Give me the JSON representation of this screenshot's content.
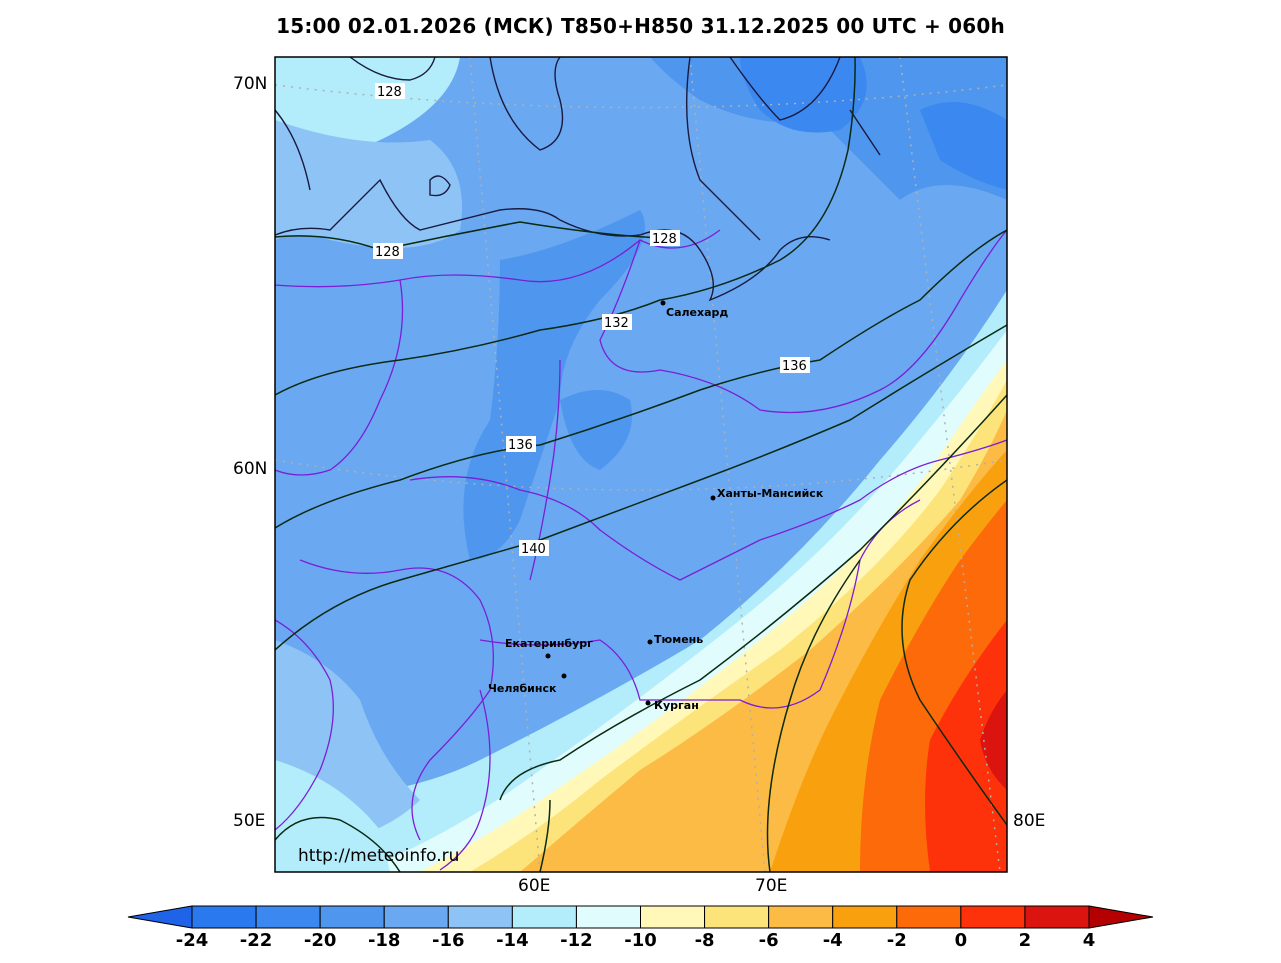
{
  "title": "15:00 02.01.2026 (МСК) T850+H850 31.12.2025 00 UTC + 060h",
  "map": {
    "lat_labels": [
      "70N",
      "60N",
      "50E"
    ],
    "lon_labels": [
      "60E",
      "70E",
      "80E"
    ],
    "url": "http://meteoinfo.ru",
    "cities": [
      {
        "name": "Салехард"
      },
      {
        "name": "Ханты-Мансийск"
      },
      {
        "name": "Екатеринбург"
      },
      {
        "name": "Тюмень"
      },
      {
        "name": "Челябинск"
      },
      {
        "name": "Курган"
      }
    ],
    "isohypse_labels": [
      "128",
      "128",
      "128",
      "132",
      "136",
      "136",
      "140"
    ]
  },
  "colorbar": {
    "ticks": [
      "-24",
      "-22",
      "-20",
      "-18",
      "-16",
      "-14",
      "-12",
      "-10",
      "-8",
      "-6",
      "-4",
      "-2",
      "0",
      "2",
      "4"
    ],
    "colors": [
      "#2b79ee",
      "#3b88f0",
      "#4f97ee",
      "#6aa9f1",
      "#8ec4f5",
      "#b3ecfa",
      "#e0fcfd",
      "#fff8b8",
      "#fde47a",
      "#fbbb44",
      "#f9a00f",
      "#fd6a0a",
      "#fe320a",
      "#dc140f"
    ],
    "under_color": "#1f63e8",
    "over_color": "#b40000"
  },
  "palette": {
    "contour": "#0a2a12",
    "border": "#7a1fd6",
    "coast": "#1a1a40"
  }
}
